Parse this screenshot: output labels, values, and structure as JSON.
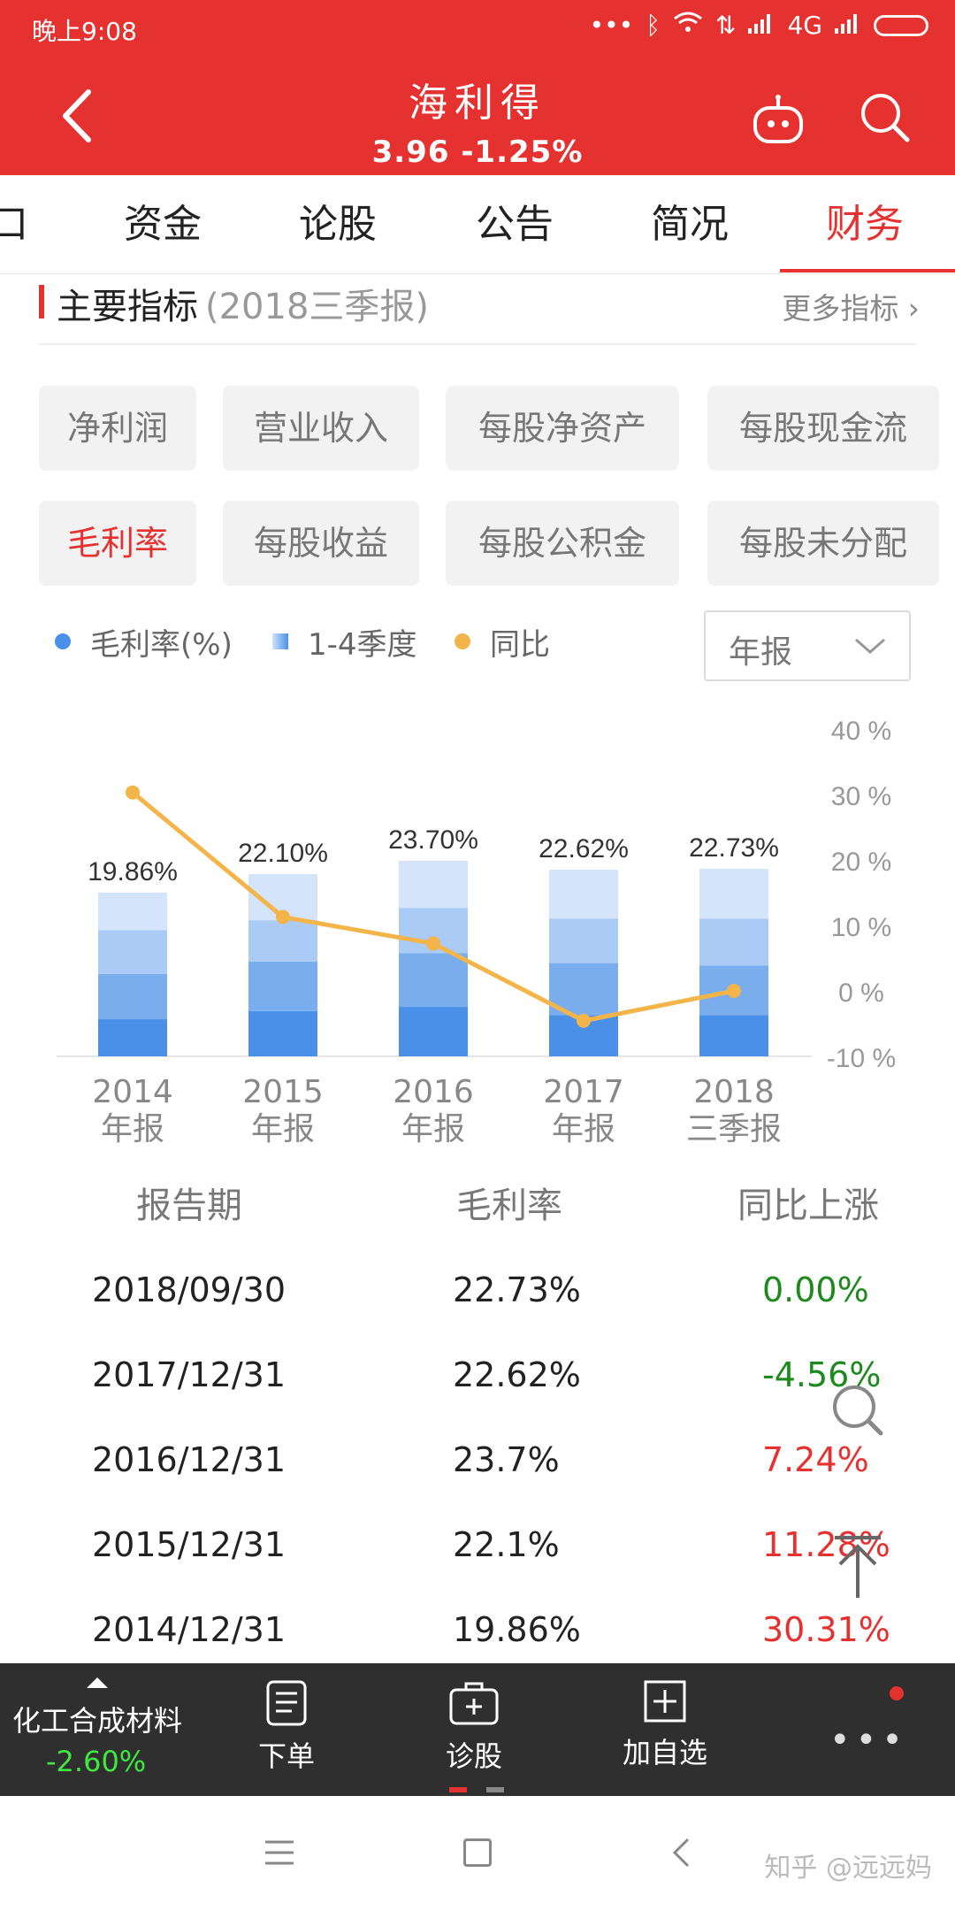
{
  "status_bar": {
    "time": "晚上9:08",
    "network": "4G"
  },
  "header": {
    "stock_name": "海利得",
    "price_change": "3.96  -1.25%"
  },
  "tabs": [
    "口",
    "资金",
    "论股",
    "公告",
    "简况",
    "财务"
  ],
  "section": {
    "title": "主要指标",
    "period": "(2018三季报)",
    "more": "更多指标 ›"
  },
  "chips": [
    "净利润",
    "营业收入",
    "每股净资产",
    "每股现金流",
    "毛利率",
    "每股收益",
    "每股公积金",
    "每股未分配"
  ],
  "legend": {
    "gross_margin": "毛利率(%)",
    "quarters": "1-4季度",
    "yoy": "同比"
  },
  "period_select": "年报",
  "colors": {
    "brand_red": "#e5312f",
    "q1": "#4a90e8",
    "q2": "#79adee",
    "q3": "#a9cbf6",
    "q4": "#d3e4fb",
    "yoy_line": "#f3b54a",
    "up": "#e5312f",
    "down": "#1e8a1e"
  },
  "chart_data": {
    "type": "bar",
    "categories": [
      "2014\n年报",
      "2015\n年报",
      "2016\n年报",
      "2017\n年报",
      "2018\n三季报"
    ],
    "value_labels": [
      "19.86%",
      "22.10%",
      "23.70%",
      "22.62%",
      "22.73%"
    ],
    "series": [
      {
        "name": "毛利率(%)",
        "values": [
          19.86,
          22.1,
          23.7,
          22.62,
          22.73
        ]
      },
      {
        "name": "同比",
        "values": [
          30.31,
          11.28,
          7.24,
          -4.56,
          0.0
        ]
      }
    ],
    "quarters": [
      [
        19.86,
        15.3,
        10.0,
        4.5
      ],
      [
        22.1,
        16.5,
        11.5,
        5.5
      ],
      [
        23.7,
        18.0,
        12.5,
        6.0
      ],
      [
        22.62,
        16.7,
        11.3,
        5.0
      ],
      [
        22.73,
        16.7,
        11.0,
        5.0
      ]
    ],
    "y2_ticks": [
      "40 %",
      "30 %",
      "20 %",
      "10 %",
      "0 %",
      "-10 %"
    ],
    "ylim": [
      -10,
      40
    ]
  },
  "table": {
    "headers": [
      "报告期",
      "毛利率",
      "同比上涨"
    ],
    "rows": [
      {
        "date": "2018/09/30",
        "margin": "22.73%",
        "yoy": "0.00%",
        "dir": "down"
      },
      {
        "date": "2017/12/31",
        "margin": "22.62%",
        "yoy": "-4.56%",
        "dir": "down"
      },
      {
        "date": "2016/12/31",
        "margin": "23.7%",
        "yoy": "7.24%",
        "dir": "up"
      },
      {
        "date": "2015/12/31",
        "margin": "22.1%",
        "yoy": "11.28%",
        "dir": "up"
      },
      {
        "date": "2014/12/31",
        "margin": "19.86%",
        "yoy": "30.31%",
        "dir": "up"
      }
    ]
  },
  "toolbar": {
    "sector": "化工合成材料",
    "sector_change": "-2.60%",
    "order": "下单",
    "diagnose": "诊股",
    "watchlist": "加自选"
  },
  "watermark": "知乎 @远远妈"
}
